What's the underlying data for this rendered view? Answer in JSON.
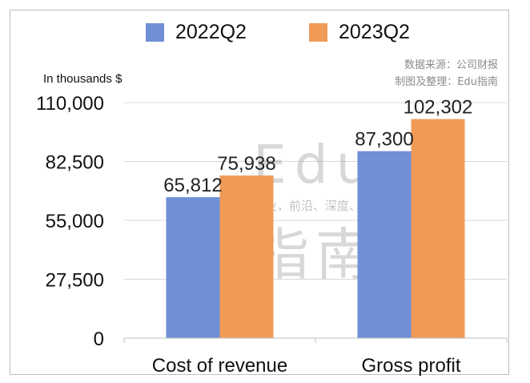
{
  "chart_data": {
    "type": "bar",
    "categories": [
      "Cost of revenue",
      "Gross profit"
    ],
    "series": [
      {
        "name": "2022Q2",
        "values": [
          65812,
          87300
        ],
        "color": "#6f8fd6"
      },
      {
        "name": "2023Q2",
        "values": [
          75938,
          102302
        ],
        "color": "#f09a58"
      }
    ],
    "ylim": [
      0,
      110000
    ],
    "yticks": [
      0,
      27500,
      55000,
      82500,
      110000
    ],
    "ytick_labels": [
      "0",
      "27,500",
      "55,000",
      "82,500",
      "110,000"
    ],
    "data_labels": [
      [
        "65,812",
        "87,300"
      ],
      [
        "75,938",
        "102,302"
      ]
    ],
    "unit_label": "In thousands $",
    "legend_position": "top",
    "grid": true
  },
  "source_lines": [
    "数据来源：公司财报",
    "制图及整理：Edu指南"
  ],
  "watermark": {
    "logo": "Edu",
    "logo_cn": "指南",
    "tagline": "教育行业，前沿、深度、独家"
  }
}
